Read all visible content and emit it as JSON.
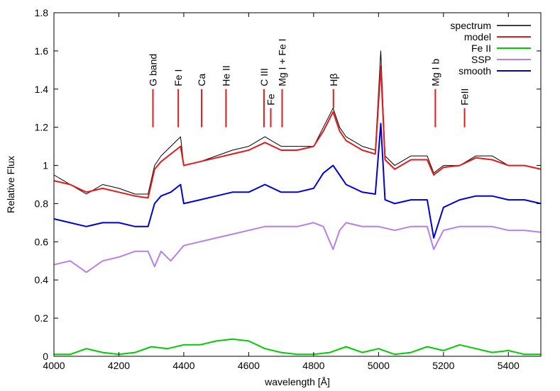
{
  "chart_data": {
    "type": "line",
    "xlabel": "wavelength [Å]",
    "ylabel": "Relative Flux",
    "xlim": [
      4000,
      5500
    ],
    "ylim": [
      0,
      1.8
    ],
    "xticks": [
      4000,
      4200,
      4400,
      4600,
      4800,
      5000,
      5200,
      5400
    ],
    "yticks": [
      0,
      0.2,
      0.4,
      0.6,
      0.8,
      1,
      1.2,
      1.4,
      1.6,
      1.8
    ],
    "grid": false,
    "legend_position": "top-right",
    "series": [
      {
        "name": "spectrum",
        "color": "#000000",
        "x": [
          4000,
          4050,
          4100,
          4150,
          4200,
          4250,
          4290,
          4310,
          4330,
          4360,
          4390,
          4400,
          4450,
          4500,
          4550,
          4600,
          4650,
          4700,
          4750,
          4800,
          4830,
          4860,
          4880,
          4900,
          4950,
          4990,
          5007,
          5020,
          5050,
          5100,
          5150,
          5170,
          5200,
          5250,
          5300,
          5350,
          5400,
          5450,
          5500
        ],
        "values": [
          0.95,
          0.9,
          0.85,
          0.9,
          0.88,
          0.85,
          0.85,
          1.0,
          1.05,
          1.1,
          1.15,
          1.0,
          1.02,
          1.05,
          1.08,
          1.1,
          1.15,
          1.1,
          1.1,
          1.1,
          1.2,
          1.3,
          1.2,
          1.15,
          1.1,
          1.08,
          1.6,
          1.05,
          1.0,
          1.05,
          1.05,
          0.96,
          1.0,
          1.0,
          1.05,
          1.05,
          1.0,
          1.0,
          0.98
        ]
      },
      {
        "name": "model",
        "color": "#e41a1c",
        "x": [
          4000,
          4050,
          4100,
          4150,
          4200,
          4250,
          4290,
          4310,
          4330,
          4360,
          4390,
          4400,
          4450,
          4500,
          4550,
          4600,
          4650,
          4700,
          4750,
          4800,
          4830,
          4860,
          4880,
          4900,
          4950,
          4990,
          5007,
          5020,
          5050,
          5100,
          5150,
          5170,
          5200,
          5250,
          5300,
          5350,
          5400,
          5450,
          5500
        ],
        "values": [
          0.92,
          0.9,
          0.86,
          0.88,
          0.86,
          0.84,
          0.83,
          0.98,
          1.02,
          1.06,
          1.1,
          1.0,
          1.02,
          1.04,
          1.06,
          1.08,
          1.12,
          1.08,
          1.08,
          1.1,
          1.18,
          1.28,
          1.18,
          1.13,
          1.08,
          1.06,
          1.52,
          1.03,
          0.98,
          1.03,
          1.03,
          0.95,
          0.99,
          1.0,
          1.04,
          1.03,
          1.0,
          1.0,
          0.98
        ]
      },
      {
        "name": "Fe II",
        "color": "#00cc00",
        "x": [
          4000,
          4050,
          4100,
          4150,
          4200,
          4250,
          4300,
          4350,
          4400,
          4450,
          4500,
          4550,
          4600,
          4650,
          4700,
          4750,
          4800,
          4850,
          4900,
          4950,
          5000,
          5050,
          5100,
          5150,
          5200,
          5250,
          5300,
          5350,
          5400,
          5450,
          5500
        ],
        "values": [
          0.01,
          0.01,
          0.04,
          0.02,
          0.01,
          0.02,
          0.05,
          0.04,
          0.06,
          0.06,
          0.08,
          0.09,
          0.08,
          0.04,
          0.02,
          0.01,
          0.01,
          0.02,
          0.05,
          0.02,
          0.04,
          0.01,
          0.02,
          0.05,
          0.03,
          0.06,
          0.04,
          0.02,
          0.03,
          0.01,
          0.01
        ]
      },
      {
        "name": "SSP",
        "color": "#b77fe8",
        "x": [
          4000,
          4050,
          4100,
          4150,
          4200,
          4250,
          4290,
          4310,
          4330,
          4360,
          4400,
          4450,
          4500,
          4550,
          4600,
          4650,
          4700,
          4750,
          4800,
          4830,
          4860,
          4880,
          4900,
          4950,
          5000,
          5050,
          5100,
          5150,
          5170,
          5200,
          5250,
          5300,
          5350,
          5400,
          5450,
          5500
        ],
        "values": [
          0.48,
          0.5,
          0.44,
          0.5,
          0.52,
          0.55,
          0.55,
          0.47,
          0.55,
          0.5,
          0.58,
          0.6,
          0.62,
          0.64,
          0.66,
          0.68,
          0.68,
          0.68,
          0.7,
          0.68,
          0.56,
          0.66,
          0.7,
          0.68,
          0.68,
          0.66,
          0.68,
          0.68,
          0.56,
          0.66,
          0.68,
          0.68,
          0.68,
          0.66,
          0.66,
          0.65
        ]
      },
      {
        "name": "smooth",
        "color": "#0000dd",
        "x": [
          4000,
          4050,
          4100,
          4150,
          4200,
          4250,
          4290,
          4310,
          4330,
          4360,
          4390,
          4400,
          4450,
          4500,
          4550,
          4600,
          4650,
          4700,
          4750,
          4800,
          4830,
          4860,
          4880,
          4900,
          4950,
          4990,
          5007,
          5020,
          5050,
          5100,
          5150,
          5170,
          5200,
          5250,
          5300,
          5350,
          5400,
          5450,
          5500
        ],
        "values": [
          0.72,
          0.7,
          0.68,
          0.7,
          0.7,
          0.68,
          0.68,
          0.8,
          0.84,
          0.86,
          0.9,
          0.8,
          0.82,
          0.84,
          0.86,
          0.86,
          0.9,
          0.86,
          0.86,
          0.88,
          0.96,
          1.0,
          0.95,
          0.9,
          0.86,
          0.85,
          1.22,
          0.82,
          0.8,
          0.82,
          0.82,
          0.62,
          0.78,
          0.82,
          0.84,
          0.84,
          0.82,
          0.82,
          0.8
        ]
      }
    ],
    "line_markers": [
      {
        "label": "G band",
        "x": 4305,
        "y0": 1.2,
        "y1": 1.4
      },
      {
        "label": "Fe I",
        "x": 4383,
        "y0": 1.2,
        "y1": 1.4
      },
      {
        "label": "Ca",
        "x": 4455,
        "y0": 1.2,
        "y1": 1.4
      },
      {
        "label": "He II",
        "x": 4530,
        "y0": 1.2,
        "y1": 1.4
      },
      {
        "label": "C III",
        "x": 4647,
        "y0": 1.2,
        "y1": 1.4
      },
      {
        "label": "Fe",
        "x": 4668,
        "y0": 1.2,
        "y1": 1.3
      },
      {
        "label": "Mg I + Fe I",
        "x": 4703,
        "y0": 1.2,
        "y1": 1.4
      },
      {
        "label": "Hβ",
        "x": 4861,
        "y0": 1.3,
        "y1": 1.4
      },
      {
        "label": "Mg I b",
        "x": 5175,
        "y0": 1.2,
        "y1": 1.4
      },
      {
        "label": "FeII",
        "x": 5265,
        "y0": 1.2,
        "y1": 1.3
      }
    ],
    "marker_color": "#e41a1c"
  }
}
